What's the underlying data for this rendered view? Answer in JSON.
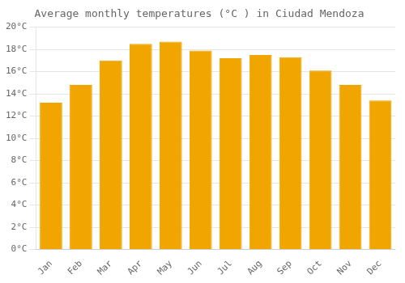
{
  "chart_data": {
    "type": "bar",
    "title": "Average monthly temperatures (°C ) in Ciudad Mendoza",
    "categories": [
      "Jan",
      "Feb",
      "Mar",
      "Apr",
      "May",
      "Jun",
      "Jul",
      "Aug",
      "Sep",
      "Oct",
      "Nov",
      "Dec"
    ],
    "values": [
      13.2,
      14.8,
      17.0,
      18.5,
      18.7,
      17.9,
      17.2,
      17.5,
      17.3,
      16.1,
      14.8,
      13.4
    ],
    "color": "#F0A500",
    "ylim": [
      0,
      20
    ],
    "yticks": [
      {
        "value": 0,
        "label": "0°C"
      },
      {
        "value": 2,
        "label": "2°C"
      },
      {
        "value": 4,
        "label": "4°C"
      },
      {
        "value": 6,
        "label": "6°C"
      },
      {
        "value": 8,
        "label": "8°C"
      },
      {
        "value": 10,
        "label": "10°C"
      },
      {
        "value": 12,
        "label": "12°C"
      },
      {
        "value": 14,
        "label": "14°C"
      },
      {
        "value": 16,
        "label": "16°C"
      },
      {
        "value": 18,
        "label": "18°C"
      },
      {
        "value": 20,
        "label": "20°C"
      }
    ],
    "grid": true
  }
}
